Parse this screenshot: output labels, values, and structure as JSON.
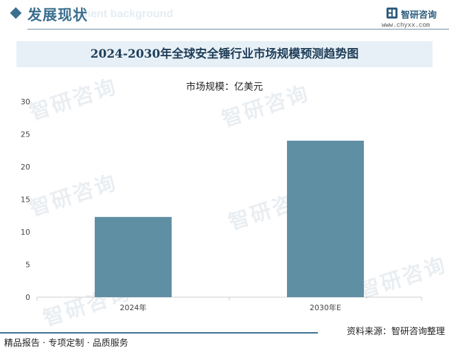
{
  "header": {
    "section_title": "发展现状",
    "ghost_text": "ment background",
    "brand_name": "智研咨询",
    "brand_url": "www.chyxx.com"
  },
  "watermark_text": "智研咨询",
  "chart_data": {
    "type": "bar",
    "title": "2024-2030年全球安全锤行业市场规模预测趋势图",
    "unit_label": "市场规模：亿美元",
    "categories": [
      "2024年",
      "2030年E"
    ],
    "values": [
      12.3,
      24
    ],
    "ylim": [
      0,
      30
    ],
    "yticks": [
      0,
      5,
      10,
      15,
      20,
      25,
      30
    ],
    "grid": false,
    "bar_color": "#5f8fa3"
  },
  "footer": {
    "slogan": "精品报告 · 专项定制 · 品质服务",
    "source": "资料来源：智研咨询整理"
  }
}
